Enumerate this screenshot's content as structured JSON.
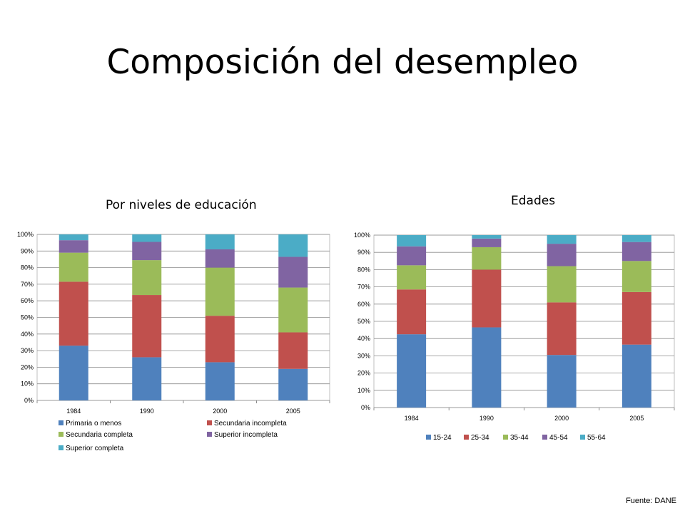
{
  "slide": {
    "title": "Composición del desempleo",
    "source": "Fuente: DANE"
  },
  "chart_data": [
    {
      "type": "bar",
      "stacked": true,
      "percent": true,
      "title": "Por niveles de educación",
      "categories": [
        "1984",
        "1990",
        "2000",
        "2005"
      ],
      "ylim": [
        0,
        100
      ],
      "yticks": [
        "0%",
        "10%",
        "20%",
        "30%",
        "40%",
        "50%",
        "60%",
        "70%",
        "80%",
        "90%",
        "100%"
      ],
      "grid": true,
      "legend": "bottom",
      "series": [
        {
          "name": "Primaria o menos",
          "color": "#4f81bd",
          "values": [
            33,
            26,
            23,
            19
          ]
        },
        {
          "name": "Secundaria incompleta",
          "color": "#c0504d",
          "values": [
            38.5,
            37.5,
            28,
            22
          ]
        },
        {
          "name": "Secundaria completa",
          "color": "#9bbb59",
          "values": [
            17.5,
            21,
            29,
            27
          ]
        },
        {
          "name": "Superior incompleta",
          "color": "#8064a2",
          "values": [
            7.5,
            11,
            11,
            18.5
          ]
        },
        {
          "name": "Superior completa",
          "color": "#4bacc6",
          "values": [
            3.5,
            4.5,
            9,
            13.5
          ]
        }
      ]
    },
    {
      "type": "bar",
      "stacked": true,
      "percent": true,
      "title": "Edades",
      "categories": [
        "1984",
        "1990",
        "2000",
        "2005"
      ],
      "ylim": [
        0,
        100
      ],
      "yticks": [
        "0%",
        "10%",
        "20%",
        "30%",
        "40%",
        "50%",
        "60%",
        "70%",
        "80%",
        "90%",
        "100%"
      ],
      "grid": true,
      "legend": "bottom",
      "series": [
        {
          "name": "15-24",
          "color": "#4f81bd",
          "values": [
            42.5,
            46.5,
            30.5,
            36.5
          ]
        },
        {
          "name": "25-34",
          "color": "#c0504d",
          "values": [
            26,
            33.5,
            30.5,
            30.5
          ]
        },
        {
          "name": "35-44",
          "color": "#9bbb59",
          "values": [
            14,
            13,
            21,
            18
          ]
        },
        {
          "name": "45-54",
          "color": "#8064a2",
          "values": [
            11,
            5,
            13,
            11
          ]
        },
        {
          "name": "55-64",
          "color": "#4bacc6",
          "values": [
            6.5,
            2,
            5,
            4
          ]
        }
      ]
    }
  ]
}
